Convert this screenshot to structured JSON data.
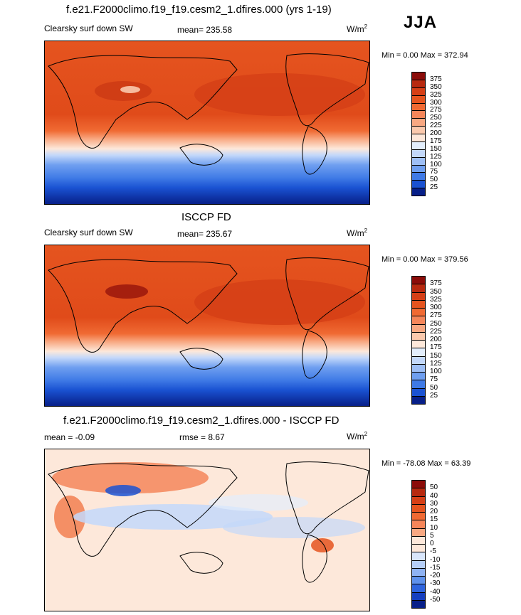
{
  "season": "JJA",
  "panels": [
    {
      "title": "f.e21.F2000climo.f19_f19.cesm2_1.dfires.000 (yrs 1-19)",
      "left_label": "Clearsky surf down SW",
      "mean_label": "mean= 235.58",
      "units": "W/m",
      "units_sup": "2",
      "minmax": "Min =   0.00 Max = 372.94"
    },
    {
      "title": "ISCCP FD",
      "left_label": "Clearsky surf down SW",
      "mean_label": "mean= 235.67",
      "units": "W/m",
      "units_sup": "2",
      "minmax": "Min =   0.00 Max = 379.56"
    },
    {
      "title": "f.e21.F2000climo.f19_f19.cesm2_1.dfires.000 - ISCCP FD",
      "left_label": "mean =  -0.09",
      "mean_label": "rmse =    8.67",
      "units": "W/m",
      "units_sup": "2",
      "minmax": "Min = -78.08 Max =  63.39"
    }
  ],
  "chart_data": [
    {
      "type": "heatmap",
      "title": "f.e21.F2000climo.f19_f19.cesm2_1.dfires.000 (yrs 1-19)",
      "variable": "Clearsky surf down SW",
      "units": "W/m2",
      "mean": 235.58,
      "min": 0.0,
      "max": 372.94,
      "colorbar_levels": [
        "375",
        "350",
        "325",
        "300",
        "275",
        "250",
        "225",
        "200",
        "175",
        "150",
        "125",
        "100",
        "75",
        "50",
        "25"
      ],
      "colorbar_colors": [
        "#8b0c09",
        "#b7290f",
        "#d53f16",
        "#e5541f",
        "#f06a33",
        "#f5865a",
        "#f8a882",
        "#fac9ad",
        "#fde8da",
        "#e3eefc",
        "#c3d8fa",
        "#9ebff6",
        "#6f9ff0",
        "#3f7ae6",
        "#1a52d2",
        "#071f88"
      ]
    },
    {
      "type": "heatmap",
      "title": "ISCCP FD",
      "variable": "Clearsky surf down SW",
      "units": "W/m2",
      "mean": 235.67,
      "min": 0.0,
      "max": 379.56,
      "colorbar_levels": [
        "375",
        "350",
        "325",
        "300",
        "275",
        "250",
        "225",
        "200",
        "175",
        "150",
        "125",
        "100",
        "75",
        "50",
        "25"
      ],
      "colorbar_colors": [
        "#8b0c09",
        "#b7290f",
        "#d53f16",
        "#e5541f",
        "#f06a33",
        "#f5865a",
        "#f8a882",
        "#fac9ad",
        "#fde8da",
        "#e3eefc",
        "#c3d8fa",
        "#9ebff6",
        "#6f9ff0",
        "#3f7ae6",
        "#1a52d2",
        "#071f88"
      ]
    },
    {
      "type": "heatmap",
      "title": "f.e21.F2000climo.f19_f19.cesm2_1.dfires.000 - ISCCP FD",
      "units": "W/m2",
      "mean": -0.09,
      "rmse": 8.67,
      "min": -78.08,
      "max": 63.39,
      "colorbar_levels": [
        "50",
        "40",
        "30",
        "20",
        "15",
        "10",
        "5",
        "0",
        "-5",
        "-10",
        "-15",
        "-20",
        "-30",
        "-40",
        "-50"
      ],
      "colorbar_colors": [
        "#8b0c09",
        "#b7290f",
        "#d53f16",
        "#e5541f",
        "#f06a33",
        "#f5865a",
        "#f8a882",
        "#fde8da",
        "#fde8da",
        "#d9e6fb",
        "#b6cff8",
        "#8fb3f3",
        "#5f92ec",
        "#2f65de",
        "#153fbf",
        "#071f88"
      ]
    }
  ]
}
